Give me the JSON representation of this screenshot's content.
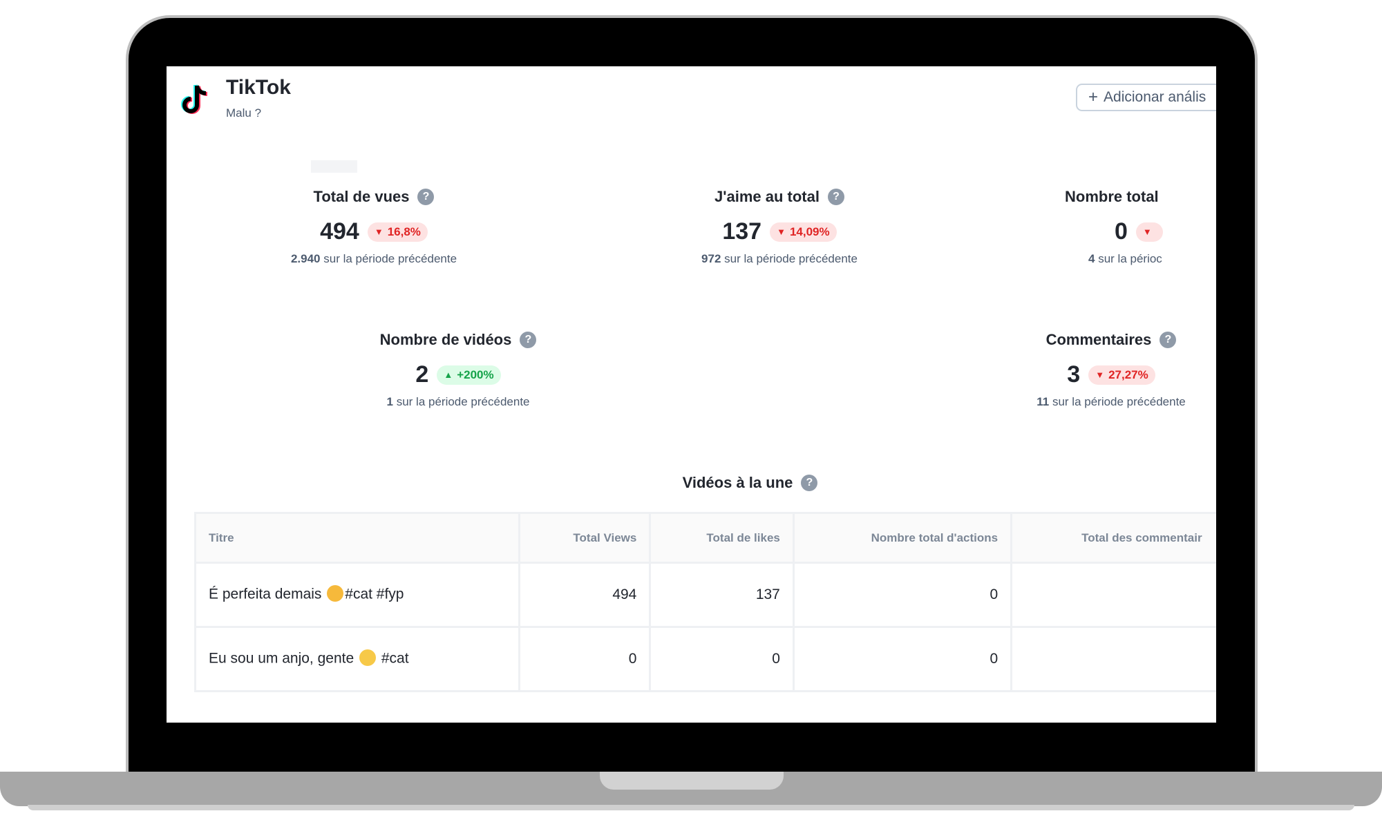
{
  "header": {
    "title": "TikTok",
    "subtitle": "Malu ?",
    "add_button_label": "Adicionar anális"
  },
  "metrics": {
    "views": {
      "title": "Total de vues",
      "value": "494",
      "change": "16,8%",
      "trend": "down",
      "prev_value": "2.940",
      "prev_text": "sur la période précédente"
    },
    "likes": {
      "title": "J'aime au total",
      "value": "137",
      "change": "14,09%",
      "trend": "down",
      "prev_value": "972",
      "prev_text": "sur la période précédente"
    },
    "shares": {
      "title": "Nombre total",
      "value": "0",
      "prev_value": "4",
      "prev_text": "sur la périoc"
    },
    "videos": {
      "title": "Nombre de vidéos",
      "value": "2",
      "change": "+200%",
      "trend": "up",
      "prev_value": "1",
      "prev_text": "sur la période précédente"
    },
    "comments": {
      "title": "Commentaires",
      "value": "3",
      "change": "27,27%",
      "trend": "down",
      "prev_value": "11",
      "prev_text": "sur la période précédente"
    }
  },
  "featured": {
    "title": "Vidéos à la une",
    "columns": [
      "Titre",
      "Total Views",
      "Total de likes",
      "Nombre total d'actions",
      "Total des commentair"
    ],
    "rows": [
      {
        "title_before": "É perfeita demais",
        "emoji": "smiling-cat-heart-eyes",
        "title_after": "#cat #fyp",
        "views": "494",
        "likes": "137",
        "actions": "0",
        "comments": ""
      },
      {
        "title_before": "Eu sou um anjo, gente",
        "emoji": "pleading-face",
        "title_after": "#cat",
        "views": "0",
        "likes": "0",
        "actions": "0",
        "comments": ""
      }
    ]
  },
  "colors": {
    "badge_down_bg": "#fde2e2",
    "badge_down_text": "#e02424",
    "badge_up_bg": "#dcfce7",
    "badge_up_text": "#16a34a"
  }
}
